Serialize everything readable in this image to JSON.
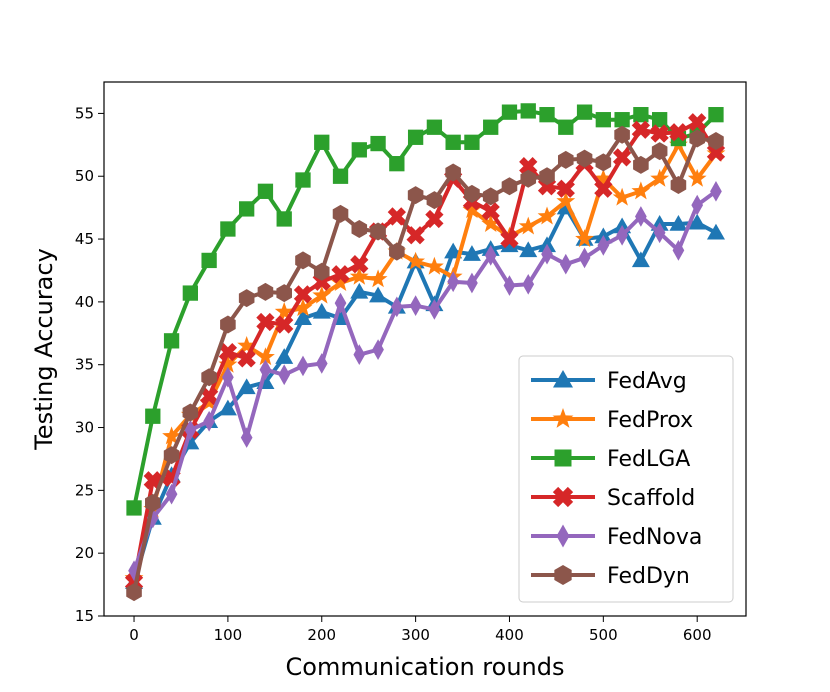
{
  "chart_data": {
    "type": "line",
    "title": "",
    "xlabel": "Communication rounds",
    "ylabel": "Testing Accuracy",
    "xlim": [
      -32,
      652
    ],
    "ylim": [
      15,
      57.5
    ],
    "xticks": [
      0,
      100,
      200,
      300,
      400,
      500,
      600
    ],
    "yticks": [
      15,
      20,
      25,
      30,
      35,
      40,
      45,
      50,
      55
    ],
    "grid": false,
    "legend_position": "lower-right",
    "x": [
      0,
      20,
      40,
      60,
      80,
      100,
      120,
      140,
      160,
      180,
      200,
      220,
      240,
      260,
      280,
      300,
      320,
      340,
      360,
      380,
      400,
      420,
      440,
      460,
      480,
      500,
      520,
      540,
      560,
      580,
      600,
      620
    ],
    "series": [
      {
        "name": "FedAvg",
        "color": "#1f77b4",
        "marker": "triangle",
        "values": [
          17.7,
          22.8,
          26.2,
          28.8,
          30.5,
          31.5,
          33.2,
          33.6,
          35.6,
          38.7,
          39.2,
          38.7,
          40.8,
          40.5,
          39.6,
          43.2,
          39.8,
          44.0,
          43.8,
          44.2,
          44.5,
          44.1,
          44.5,
          47.5,
          45.0,
          45.2,
          46.0,
          43.3,
          46.2,
          46.2,
          46.3,
          45.5
        ]
      },
      {
        "name": "FedProx",
        "color": "#ff7f0e",
        "marker": "star",
        "values": [
          18.0,
          23.5,
          29.3,
          31.0,
          32.0,
          35.0,
          36.5,
          35.6,
          39.2,
          39.5,
          40.5,
          41.5,
          42.0,
          41.8,
          44.0,
          43.2,
          42.8,
          42.0,
          47.3,
          46.2,
          45.2,
          46.0,
          46.8,
          48.0,
          45.0,
          49.8,
          48.3,
          48.8,
          49.8,
          52.5,
          49.8,
          51.8
        ]
      },
      {
        "name": "FedLGA",
        "color": "#2ca02c",
        "marker": "square",
        "values": [
          23.6,
          30.9,
          36.9,
          40.7,
          43.3,
          45.8,
          47.4,
          48.8,
          46.6,
          49.7,
          52.7,
          50.0,
          52.1,
          52.6,
          51.0,
          53.1,
          53.9,
          52.7,
          52.7,
          53.9,
          55.1,
          55.2,
          54.9,
          53.9,
          55.1,
          54.5,
          54.5,
          54.9,
          54.5,
          53.0,
          53.4,
          54.9
        ]
      },
      {
        "name": "Scaffold",
        "color": "#d62728",
        "marker": "x",
        "values": [
          17.7,
          25.8,
          26.0,
          29.8,
          32.5,
          36.0,
          35.5,
          38.4,
          38.2,
          40.6,
          41.6,
          42.2,
          43.0,
          45.6,
          46.8,
          45.3,
          46.6,
          49.8,
          48.0,
          47.2,
          45.0,
          50.8,
          49.2,
          49.0,
          51.0,
          49.0,
          51.5,
          53.7,
          53.4,
          53.5,
          54.3,
          51.9
        ]
      },
      {
        "name": "FedNova",
        "color": "#9467bd",
        "marker": "diamond",
        "values": [
          18.6,
          22.8,
          24.7,
          29.8,
          30.5,
          34.0,
          29.2,
          34.6,
          34.2,
          34.9,
          35.1,
          39.9,
          35.8,
          36.2,
          39.6,
          39.7,
          39.4,
          41.6,
          41.5,
          43.7,
          41.3,
          41.4,
          43.8,
          43.0,
          43.5,
          44.5,
          45.3,
          46.8,
          45.5,
          44.1,
          47.7,
          48.8
        ]
      },
      {
        "name": "FedDyn",
        "color": "#8c564b",
        "marker": "hexagon",
        "values": [
          16.9,
          24.0,
          27.8,
          31.2,
          34.0,
          38.2,
          40.3,
          40.8,
          40.7,
          43.3,
          42.4,
          47.0,
          45.8,
          45.6,
          44.0,
          48.5,
          48.1,
          50.3,
          48.6,
          48.4,
          49.2,
          49.8,
          50.0,
          51.3,
          51.4,
          51.1,
          53.3,
          50.9,
          52.0,
          49.3,
          53.0,
          52.8
        ]
      }
    ]
  }
}
